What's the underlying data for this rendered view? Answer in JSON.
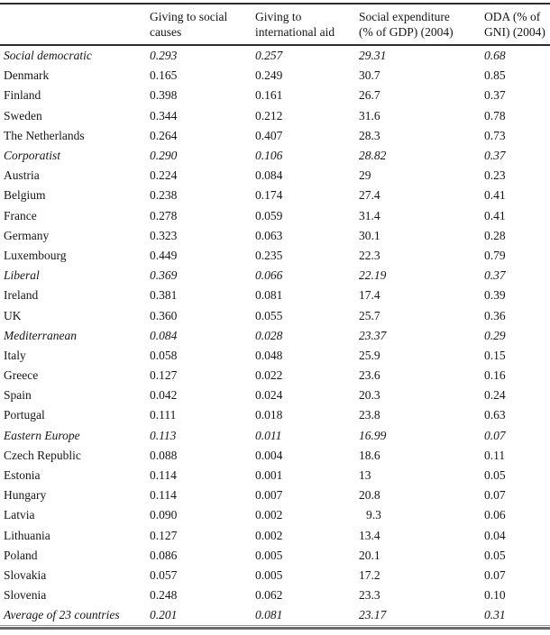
{
  "table": {
    "columns": [
      {
        "line1": "Giving to social",
        "line2": "causes"
      },
      {
        "line1": "Giving to",
        "line2": "international aid"
      },
      {
        "line1": "Social expenditure",
        "line2": "(% of GDP) (2004)"
      },
      {
        "line1": "ODA (% of",
        "line2": "GNI) (2004)"
      }
    ],
    "rows": [
      {
        "label": "Social democratic",
        "italic": true,
        "values": [
          "0.293",
          "0.257",
          "29.31",
          "0.68"
        ]
      },
      {
        "label": "Denmark",
        "italic": false,
        "values": [
          "0.165",
          "0.249",
          "30.7",
          "0.85"
        ]
      },
      {
        "label": "Finland",
        "italic": false,
        "values": [
          "0.398",
          "0.161",
          "26.7",
          "0.37"
        ]
      },
      {
        "label": "Sweden",
        "italic": false,
        "values": [
          "0.344",
          "0.212",
          "31.6",
          "0.78"
        ]
      },
      {
        "label": "The Netherlands",
        "italic": false,
        "values": [
          "0.264",
          "0.407",
          "28.3",
          "0.73"
        ]
      },
      {
        "label": "Corporatist",
        "italic": true,
        "values": [
          "0.290",
          "0.106",
          "28.82",
          "0.37"
        ]
      },
      {
        "label": "Austria",
        "italic": false,
        "values": [
          "0.224",
          "0.084",
          "29",
          "0.23"
        ]
      },
      {
        "label": "Belgium",
        "italic": false,
        "values": [
          "0.238",
          "0.174",
          "27.4",
          "0.41"
        ]
      },
      {
        "label": "France",
        "italic": false,
        "values": [
          "0.278",
          "0.059",
          "31.4",
          "0.41"
        ]
      },
      {
        "label": "Germany",
        "italic": false,
        "values": [
          "0.323",
          "0.063",
          "30.1",
          "0.28"
        ]
      },
      {
        "label": "Luxembourg",
        "italic": false,
        "values": [
          "0.449",
          "0.235",
          "22.3",
          "0.79"
        ]
      },
      {
        "label": "Liberal",
        "italic": true,
        "values": [
          "0.369",
          "0.066",
          "22.19",
          "0.37"
        ]
      },
      {
        "label": "Ireland",
        "italic": false,
        "values": [
          "0.381",
          "0.081",
          "17.4",
          "0.39"
        ]
      },
      {
        "label": "UK",
        "italic": false,
        "values": [
          "0.360",
          "0.055",
          "25.7",
          "0.36"
        ]
      },
      {
        "label": "Mediterranean",
        "italic": true,
        "values": [
          "0.084",
          "0.028",
          "23.37",
          "0.29"
        ]
      },
      {
        "label": "Italy",
        "italic": false,
        "values": [
          "0.058",
          "0.048",
          "25.9",
          "0.15"
        ]
      },
      {
        "label": "Greece",
        "italic": false,
        "values": [
          "0.127",
          "0.022",
          "23.6",
          "0.16"
        ]
      },
      {
        "label": "Spain",
        "italic": false,
        "values": [
          "0.042",
          "0.024",
          "20.3",
          "0.24"
        ]
      },
      {
        "label": "Portugal",
        "italic": false,
        "values": [
          "0.111",
          "0.018",
          "23.8",
          "0.63"
        ]
      },
      {
        "label": "Eastern Europe",
        "italic": true,
        "values": [
          "0.113",
          "0.011",
          "16.99",
          "0.07"
        ]
      },
      {
        "label": "Czech Republic",
        "italic": false,
        "values": [
          "0.088",
          "0.004",
          "18.6",
          "0.11"
        ]
      },
      {
        "label": "Estonia",
        "italic": false,
        "values": [
          "0.114",
          "0.001",
          "13",
          "0.05"
        ]
      },
      {
        "label": "Hungary",
        "italic": false,
        "values": [
          "0.114",
          "0.007",
          "20.8",
          "0.07"
        ]
      },
      {
        "label": "Latvia",
        "italic": false,
        "values": [
          "0.090",
          "0.002",
          "9.3",
          "0.06"
        ],
        "indent_value": 2
      },
      {
        "label": "Lithuania",
        "italic": false,
        "values": [
          "0.127",
          "0.002",
          "13.4",
          "0.04"
        ]
      },
      {
        "label": "Poland",
        "italic": false,
        "values": [
          "0.086",
          "0.005",
          "20.1",
          "0.05"
        ]
      },
      {
        "label": "Slovakia",
        "italic": false,
        "values": [
          "0.057",
          "0.005",
          "17.2",
          "0.07"
        ]
      },
      {
        "label": "Slovenia",
        "italic": false,
        "values": [
          "0.248",
          "0.062",
          "23.3",
          "0.10"
        ]
      },
      {
        "label": "Average of 23 countries",
        "italic": true,
        "values": [
          "0.201",
          "0.081",
          "23.17",
          "0.31"
        ]
      }
    ]
  },
  "colors": {
    "text": "#161616",
    "rule_dark": "#2c2c2c",
    "rule_bottom_thin": "#9a9a9a",
    "rule_bottom_thick": "#6b6b6b",
    "background": "#ffffff"
  }
}
